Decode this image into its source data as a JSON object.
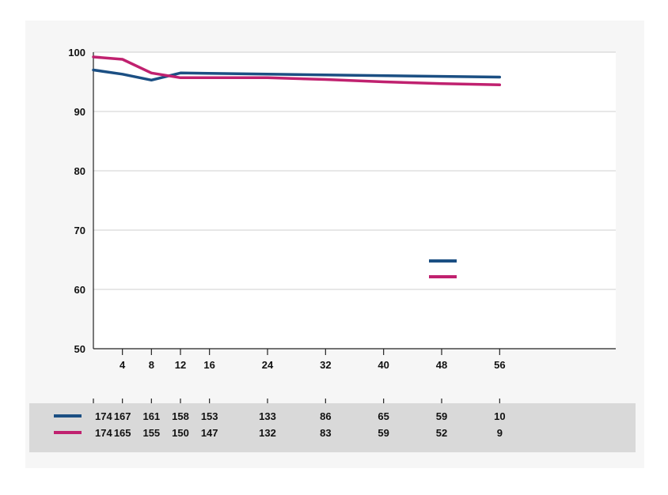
{
  "chart_data": {
    "type": "line",
    "title": "",
    "xlabel": "",
    "ylabel": "",
    "xlim": [
      0,
      72
    ],
    "ylim": [
      50,
      100
    ],
    "yticks": [
      50,
      60,
      70,
      80,
      90,
      100
    ],
    "xticks": [
      4,
      8,
      12,
      16,
      24,
      32,
      40,
      48,
      56
    ],
    "grid": true,
    "legend": "center-right",
    "series": [
      {
        "color": "#1b4f83",
        "points": [
          [
            0,
            97.0
          ],
          [
            4,
            96.3
          ],
          [
            8,
            95.3
          ],
          [
            12,
            96.5
          ],
          [
            24,
            96.3
          ],
          [
            56,
            95.8
          ]
        ]
      },
      {
        "color": "#c0216f",
        "points": [
          [
            0,
            99.2
          ],
          [
            4,
            98.8
          ],
          [
            8,
            96.5
          ],
          [
            12,
            95.7
          ],
          [
            24,
            95.7
          ],
          [
            32,
            95.4
          ],
          [
            40,
            95.0
          ],
          [
            48,
            94.7
          ],
          [
            56,
            94.5
          ]
        ]
      }
    ],
    "risk_table": {
      "times": [
        0,
        4,
        8,
        12,
        16,
        24,
        32,
        40,
        48,
        56
      ],
      "rows": [
        {
          "color": "#1b4f83",
          "values": [
            "174",
            "167",
            "161",
            "158",
            "153",
            "133",
            "86",
            "65",
            "59",
            "10"
          ]
        },
        {
          "color": "#c0216f",
          "values": [
            "174",
            "165",
            "155",
            "150",
            "147",
            "132",
            "83",
            "59",
            "52",
            "9"
          ]
        }
      ]
    },
    "colors": {
      "axis": "#222222",
      "grid": "#cfcfcf",
      "table_band": "#d9d9d9"
    }
  }
}
